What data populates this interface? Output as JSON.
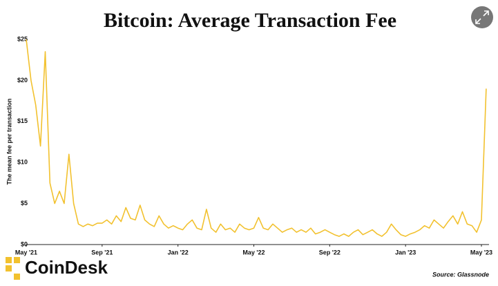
{
  "chart_data": {
    "type": "line",
    "title": "Bitcoin: Average Transaction Fee",
    "y_label": "The mean fee per transaction",
    "source": "Source: Glassnode",
    "brand": "CoinDesk",
    "categories": [
      "May '21",
      null,
      null,
      null,
      null,
      null,
      null,
      null,
      null,
      null,
      null,
      null,
      null,
      null,
      null,
      null,
      "Sep '21",
      null,
      null,
      null,
      null,
      null,
      null,
      null,
      null,
      null,
      null,
      null,
      null,
      null,
      null,
      null,
      "Jan '22",
      null,
      null,
      null,
      null,
      null,
      null,
      null,
      null,
      null,
      null,
      null,
      null,
      null,
      null,
      null,
      "May '22",
      null,
      null,
      null,
      null,
      null,
      null,
      null,
      null,
      null,
      null,
      null,
      null,
      null,
      null,
      null,
      "Sep '22",
      null,
      null,
      null,
      null,
      null,
      null,
      null,
      null,
      null,
      null,
      null,
      null,
      null,
      null,
      null,
      "Jan '23",
      null,
      null,
      null,
      null,
      null,
      null,
      null,
      null,
      null,
      null,
      null,
      null,
      null,
      null,
      null,
      "May '23",
      null
    ],
    "series": [
      {
        "name": "Average transaction fee",
        "color": "#f2c12e",
        "values": [
          25,
          20,
          17,
          12,
          23.5,
          7.5,
          5,
          6.5,
          5,
          11,
          5,
          2.5,
          2.2,
          2.5,
          2.3,
          2.6,
          2.6,
          3,
          2.5,
          3.5,
          2.8,
          4.5,
          3.2,
          3,
          4.8,
          3,
          2.5,
          2.2,
          3.5,
          2.5,
          2,
          2.3,
          2,
          1.8,
          2.5,
          3,
          2,
          1.8,
          4.3,
          2,
          1.5,
          2.5,
          1.8,
          2,
          1.5,
          2.5,
          2,
          1.8,
          2,
          3.3,
          2,
          1.8,
          2.5,
          2,
          1.5,
          1.8,
          2,
          1.5,
          1.8,
          1.5,
          2,
          1.3,
          1.5,
          1.8,
          1.5,
          1.2,
          1,
          1.3,
          1,
          1.5,
          1.8,
          1.2,
          1.5,
          1.8,
          1.3,
          1,
          1.5,
          2.5,
          1.8,
          1.2,
          1,
          1.3,
          1.5,
          1.8,
          2.3,
          2,
          3,
          2.5,
          2,
          2.8,
          3.5,
          2.5,
          4,
          2.5,
          2.3,
          1.5,
          3,
          19
        ]
      }
    ],
    "ylim": [
      0,
      25
    ],
    "yticks": [
      {
        "value": 0,
        "label": "$0"
      },
      {
        "value": 5,
        "label": "$5"
      },
      {
        "value": 10,
        "label": "$10"
      },
      {
        "value": 15,
        "label": "$15"
      },
      {
        "value": 20,
        "label": "$20"
      },
      {
        "value": 25,
        "label": "$25"
      }
    ],
    "grid": false
  }
}
